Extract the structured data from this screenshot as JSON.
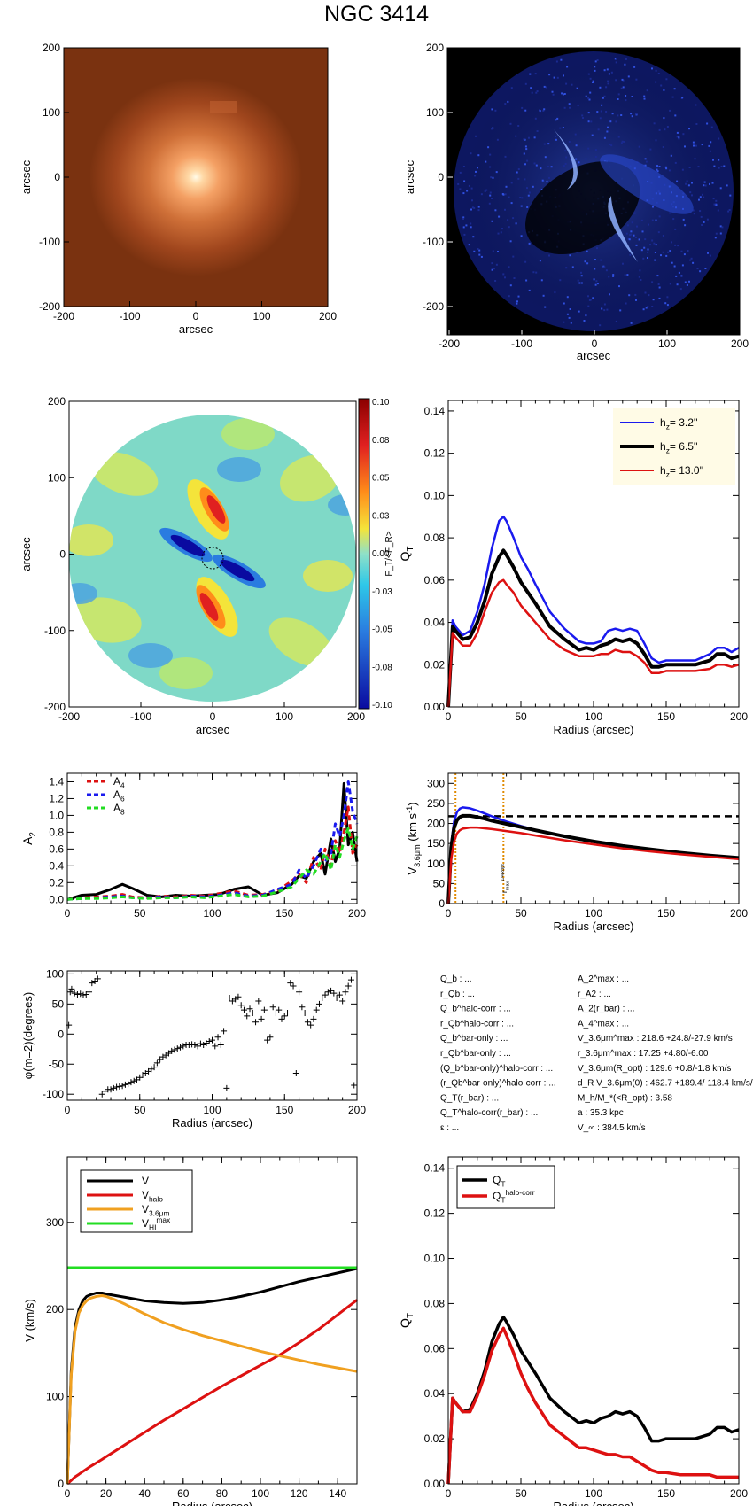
{
  "title": "NGC 3414",
  "colors": {
    "blue": "#1a1aee",
    "black": "#000000",
    "red": "#dd1111",
    "orange": "#f0a020",
    "green": "#22dd22",
    "vorange": "#e08a00"
  },
  "panels": {
    "image": {
      "xlabel": "arcsec",
      "ylabel": "arcsec",
      "ticks": [
        "-200",
        "-100",
        "0",
        "100",
        "200"
      ]
    },
    "residual": {
      "xlabel": "arcsec",
      "ylabel": "arcsec",
      "ticks": [
        "-200",
        "-100",
        "0",
        "100",
        "200"
      ]
    },
    "force": {
      "xlabel": "arcsec",
      "ylabel": "arcsec",
      "ticks": [
        "-200",
        "-100",
        "0",
        "100",
        "200"
      ],
      "colorbar_label": "F_T/<F_R>",
      "colorbar_ticks": [
        "0.10",
        "0.08",
        "0.05",
        "0.03",
        "0.00",
        "-0.03",
        "-0.05",
        "-0.08",
        "-0.10"
      ]
    },
    "params": {
      "left": [
        "Q_b : ...",
        "r_Qb : ...",
        "Q_b^halo-corr : ...",
        "r_Qb^halo-corr : ...",
        "Q_b^bar-only : ...",
        "r_Qb^bar-only : ...",
        "(Q_b^bar-only)^halo-corr : ...",
        "(r_Qb^bar-only)^halo-corr : ...",
        "Q_T(r_bar) : ...",
        "Q_T^halo-corr(r_bar) : ...",
        "ε : ..."
      ],
      "right": [
        "A_2^max : ...",
        "r_A2 : ...",
        "A_2(r_bar) : ...",
        "A_4^max : ...",
        "V_3.6μm^max : 218.6 +24.8/-27.9 km/s",
        "r_3.6μm^max : 17.25 +4.80/-6.00",
        "V_3.6μm(R_opt) : 129.6 +0.8/-1.8 km/s",
        "d_R V_3.6μm(0) : 462.7 +189.4/-118.4 km/s/kpc",
        "M_h/M_*(<R_opt) : 3.58",
        "a : 35.3 kpc",
        "V_∞ : 384.5 km/s"
      ]
    }
  },
  "chart_data": [
    {
      "type": "line",
      "xlabel": "Radius (arcsec)",
      "ylabel": "Q_T",
      "xlim": [
        0,
        200
      ],
      "ylim": [
        0,
        0.145
      ],
      "xticks": [
        0,
        50,
        100,
        150,
        200
      ],
      "yticks": [
        "0.00",
        "0.02",
        "0.04",
        "0.06",
        "0.08",
        "0.10",
        "0.12",
        "0.14"
      ],
      "x": [
        0,
        3,
        5,
        10,
        15,
        20,
        25,
        30,
        35,
        38,
        40,
        45,
        50,
        55,
        60,
        70,
        80,
        90,
        95,
        100,
        105,
        110,
        115,
        120,
        125,
        130,
        135,
        140,
        145,
        150,
        160,
        170,
        180,
        185,
        190,
        195,
        200
      ],
      "series": [
        {
          "name": "h_z=  3.2''",
          "color": "blue",
          "values": [
            0,
            0.041,
            0.038,
            0.034,
            0.036,
            0.045,
            0.058,
            0.075,
            0.088,
            0.09,
            0.088,
            0.08,
            0.071,
            0.065,
            0.058,
            0.045,
            0.037,
            0.031,
            0.03,
            0.03,
            0.031,
            0.036,
            0.037,
            0.036,
            0.037,
            0.036,
            0.03,
            0.023,
            0.021,
            0.022,
            0.022,
            0.022,
            0.025,
            0.028,
            0.028,
            0.026,
            0.028
          ]
        },
        {
          "name": "h_z=  6.5''",
          "color": "black",
          "values": [
            0,
            0.038,
            0.036,
            0.032,
            0.033,
            0.04,
            0.05,
            0.063,
            0.071,
            0.074,
            0.072,
            0.066,
            0.059,
            0.054,
            0.049,
            0.038,
            0.032,
            0.027,
            0.028,
            0.027,
            0.029,
            0.03,
            0.032,
            0.031,
            0.032,
            0.03,
            0.025,
            0.019,
            0.019,
            0.02,
            0.02,
            0.02,
            0.022,
            0.025,
            0.025,
            0.023,
            0.024
          ]
        },
        {
          "name": "h_z= 13.0''",
          "color": "red",
          "values": [
            0,
            0.035,
            0.033,
            0.029,
            0.029,
            0.035,
            0.045,
            0.054,
            0.059,
            0.06,
            0.058,
            0.054,
            0.048,
            0.044,
            0.04,
            0.032,
            0.027,
            0.024,
            0.024,
            0.024,
            0.025,
            0.025,
            0.027,
            0.026,
            0.026,
            0.024,
            0.021,
            0.016,
            0.016,
            0.017,
            0.017,
            0.017,
            0.018,
            0.02,
            0.02,
            0.019,
            0.02
          ]
        }
      ]
    },
    {
      "type": "line",
      "xlabel": "",
      "ylabel": "A_2",
      "xlim": [
        0,
        200
      ],
      "ylim": [
        -0.05,
        1.5
      ],
      "xticks": [
        0,
        50,
        100,
        150,
        200
      ],
      "yticks": [
        "0.0",
        "0.2",
        "0.4",
        "0.6",
        "0.8",
        "1.0",
        "1.2",
        "1.4"
      ],
      "x": [
        0,
        10,
        20,
        30,
        38,
        45,
        55,
        65,
        75,
        85,
        95,
        105,
        115,
        125,
        135,
        145,
        155,
        160,
        165,
        170,
        175,
        178,
        182,
        185,
        188,
        191,
        194,
        197,
        200
      ],
      "series": [
        {
          "name": "A_2",
          "color": "black",
          "values": [
            0.0,
            0.05,
            0.06,
            0.12,
            0.18,
            0.13,
            0.05,
            0.03,
            0.05,
            0.04,
            0.05,
            0.06,
            0.12,
            0.15,
            0.05,
            0.08,
            0.18,
            0.28,
            0.25,
            0.45,
            0.55,
            0.3,
            0.72,
            0.45,
            0.6,
            1.38,
            0.65,
            0.8,
            0.45
          ]
        },
        {
          "name": "A_4",
          "color": "red",
          "values": [
            0.0,
            0.02,
            0.03,
            0.04,
            0.06,
            0.03,
            0.02,
            0.04,
            0.03,
            0.05,
            0.04,
            0.07,
            0.1,
            0.05,
            0.06,
            0.1,
            0.22,
            0.3,
            0.2,
            0.5,
            0.35,
            0.6,
            0.4,
            0.7,
            0.55,
            0.8,
            1.1,
            0.55,
            0.65
          ]
        },
        {
          "name": "A_6",
          "color": "blue",
          "values": [
            0.0,
            0.01,
            0.02,
            0.03,
            0.04,
            0.02,
            0.02,
            0.03,
            0.02,
            0.04,
            0.03,
            0.05,
            0.08,
            0.04,
            0.05,
            0.12,
            0.18,
            0.35,
            0.25,
            0.4,
            0.6,
            0.45,
            0.55,
            0.9,
            0.75,
            1.0,
            1.4,
            1.05,
            0.9
          ]
        },
        {
          "name": "A_8",
          "color": "green",
          "values": [
            0.0,
            0.01,
            0.01,
            0.02,
            0.03,
            0.02,
            0.01,
            0.02,
            0.02,
            0.03,
            0.02,
            0.04,
            0.06,
            0.03,
            0.04,
            0.09,
            0.15,
            0.25,
            0.35,
            0.3,
            0.45,
            0.55,
            0.35,
            0.65,
            0.5,
            0.7,
            0.85,
            0.6,
            0.75
          ]
        }
      ]
    },
    {
      "type": "line",
      "xlabel": "Radius (arcsec)",
      "ylabel": "V_3.6μm (km s^-1)",
      "xlim": [
        0,
        200
      ],
      "ylim": [
        0,
        325
      ],
      "xticks": [
        0,
        50,
        100,
        150,
        200
      ],
      "yticks": [
        "0",
        "50",
        "100",
        "150",
        "200",
        "250",
        "300"
      ],
      "annotation": "r_max^(1/4R_opt)",
      "vlines": [
        5,
        38
      ],
      "hline": 218,
      "x": [
        0,
        2,
        4,
        6,
        8,
        10,
        15,
        20,
        25,
        30,
        40,
        50,
        60,
        80,
        100,
        120,
        140,
        160,
        180,
        200
      ],
      "series": [
        {
          "name": "blue",
          "color": "blue",
          "values": [
            0,
            150,
            205,
            228,
            237,
            240,
            238,
            232,
            225,
            218,
            205,
            194,
            184,
            168,
            154,
            143,
            134,
            126,
            119,
            113
          ]
        },
        {
          "name": "black",
          "color": "black",
          "values": [
            0,
            140,
            190,
            208,
            216,
            219,
            219,
            216,
            212,
            207,
            199,
            191,
            183,
            168,
            155,
            144,
            135,
            127,
            120,
            114
          ]
        },
        {
          "name": "red",
          "color": "red",
          "values": [
            0,
            110,
            155,
            175,
            183,
            187,
            190,
            190,
            188,
            186,
            181,
            176,
            170,
            158,
            148,
            138,
            130,
            123,
            117,
            111
          ]
        }
      ]
    },
    {
      "type": "scatter",
      "xlabel": "Radius (arcsec)",
      "ylabel": "φ(m=2)(degrees)",
      "xlim": [
        0,
        200
      ],
      "ylim": [
        -110,
        105
      ],
      "xticks": [
        0,
        50,
        100,
        150,
        200
      ],
      "yticks": [
        "-100",
        "-50",
        "0",
        "50",
        "100"
      ],
      "x": [
        1,
        2,
        3,
        5,
        7,
        9,
        11,
        13,
        15,
        17,
        19,
        21,
        24,
        26,
        28,
        30,
        32,
        34,
        36,
        38,
        40,
        42,
        44,
        46,
        48,
        50,
        52,
        54,
        56,
        58,
        60,
        62,
        64,
        66,
        68,
        70,
        72,
        74,
        76,
        78,
        80,
        82,
        84,
        86,
        88,
        90,
        92,
        94,
        96,
        98,
        100,
        102,
        104,
        106,
        108,
        110,
        112,
        114,
        116,
        118,
        120,
        122,
        124,
        126,
        128,
        130,
        132,
        134,
        136,
        138,
        140,
        142,
        144,
        146,
        148,
        150,
        152,
        154,
        156,
        158,
        160,
        162,
        164,
        166,
        168,
        170,
        172,
        174,
        176,
        178,
        180,
        182,
        184,
        186,
        188,
        190,
        192,
        194,
        196,
        198
      ],
      "y": [
        15,
        70,
        75,
        68,
        66,
        67,
        65,
        66,
        70,
        85,
        88,
        92,
        -100,
        -95,
        -92,
        -92,
        -90,
        -88,
        -87,
        -86,
        -84,
        -83,
        -80,
        -78,
        -76,
        -72,
        -68,
        -65,
        -62,
        -58,
        -55,
        -48,
        -42,
        -38,
        -35,
        -32,
        -28,
        -26,
        -24,
        -22,
        -20,
        -18,
        -18,
        -17,
        -18,
        -20,
        -16,
        -18,
        -15,
        -12,
        -10,
        -20,
        -5,
        -18,
        5,
        -90,
        60,
        55,
        58,
        62,
        48,
        40,
        30,
        42,
        35,
        20,
        55,
        25,
        40,
        -10,
        -5,
        45,
        35,
        40,
        25,
        30,
        35,
        85,
        80,
        -65,
        70,
        45,
        35,
        20,
        15,
        25,
        40,
        50,
        60,
        65,
        70,
        72,
        68,
        60,
        65,
        55,
        70,
        80,
        90,
        -85
      ]
    },
    {
      "type": "line",
      "xlabel": "Radius (arcsec)",
      "ylabel": "V (km/s)",
      "xlim": [
        0,
        150
      ],
      "ylim": [
        0,
        375
      ],
      "xticks": [
        0,
        20,
        40,
        60,
        80,
        100,
        120,
        140
      ],
      "yticks": [
        "0",
        "100",
        "200",
        "300"
      ],
      "x": [
        0,
        2,
        4,
        6,
        8,
        10,
        12,
        15,
        18,
        20,
        25,
        30,
        40,
        50,
        60,
        70,
        80,
        90,
        100,
        110,
        120,
        130,
        140,
        150
      ],
      "series": [
        {
          "name": "V",
          "color": "black",
          "values": [
            0,
            130,
            180,
            200,
            210,
            215,
            217,
            219,
            219,
            218,
            216,
            214,
            210,
            208,
            207,
            208,
            211,
            215,
            220,
            226,
            232,
            237,
            242,
            247
          ]
        },
        {
          "name": "V_halo",
          "color": "red",
          "values": [
            0,
            4,
            8,
            11,
            14,
            17,
            20,
            24,
            28,
            31,
            38,
            45,
            59,
            73,
            86,
            99,
            112,
            124,
            136,
            148,
            162,
            177,
            194,
            211
          ]
        },
        {
          "name": "V_3.6μm",
          "color": "orange",
          "values": [
            0,
            125,
            175,
            196,
            205,
            210,
            213,
            215,
            216,
            215,
            211,
            206,
            195,
            185,
            177,
            170,
            164,
            158,
            152,
            147,
            142,
            137,
            133,
            129
          ]
        },
        {
          "name": "V_HI^max",
          "color": "green",
          "values": [
            248,
            248,
            248,
            248,
            248,
            248,
            248,
            248,
            248,
            248,
            248,
            248,
            248,
            248,
            248,
            248,
            248,
            248,
            248,
            248,
            248,
            248,
            248,
            248
          ]
        }
      ]
    },
    {
      "type": "line",
      "xlabel": "Radius (arcsec)",
      "ylabel": "Q_T",
      "xlim": [
        0,
        200
      ],
      "ylim": [
        0,
        0.145
      ],
      "xticks": [
        0,
        50,
        100,
        150,
        200
      ],
      "yticks": [
        "0.00",
        "0.02",
        "0.04",
        "0.06",
        "0.08",
        "0.10",
        "0.12",
        "0.14"
      ],
      "x": [
        0,
        3,
        5,
        10,
        15,
        20,
        25,
        30,
        35,
        38,
        40,
        45,
        50,
        55,
        60,
        70,
        80,
        90,
        95,
        100,
        105,
        110,
        115,
        120,
        125,
        130,
        135,
        140,
        145,
        150,
        160,
        170,
        180,
        185,
        190,
        195,
        200
      ],
      "series": [
        {
          "name": "Q_T",
          "color": "black",
          "values": [
            0,
            0.038,
            0.036,
            0.032,
            0.033,
            0.04,
            0.05,
            0.063,
            0.071,
            0.074,
            0.072,
            0.066,
            0.059,
            0.054,
            0.049,
            0.038,
            0.032,
            0.027,
            0.028,
            0.027,
            0.029,
            0.03,
            0.032,
            0.031,
            0.032,
            0.03,
            0.025,
            0.019,
            0.019,
            0.02,
            0.02,
            0.02,
            0.022,
            0.025,
            0.025,
            0.023,
            0.024
          ]
        },
        {
          "name": "Q_T^halo-corr",
          "color": "red",
          "values": [
            0,
            0.038,
            0.036,
            0.032,
            0.032,
            0.039,
            0.048,
            0.059,
            0.066,
            0.069,
            0.066,
            0.058,
            0.049,
            0.042,
            0.036,
            0.026,
            0.021,
            0.016,
            0.016,
            0.015,
            0.014,
            0.013,
            0.013,
            0.012,
            0.012,
            0.01,
            0.008,
            0.006,
            0.005,
            0.005,
            0.004,
            0.004,
            0.004,
            0.003,
            0.003,
            0.003,
            0.003
          ]
        }
      ]
    }
  ]
}
